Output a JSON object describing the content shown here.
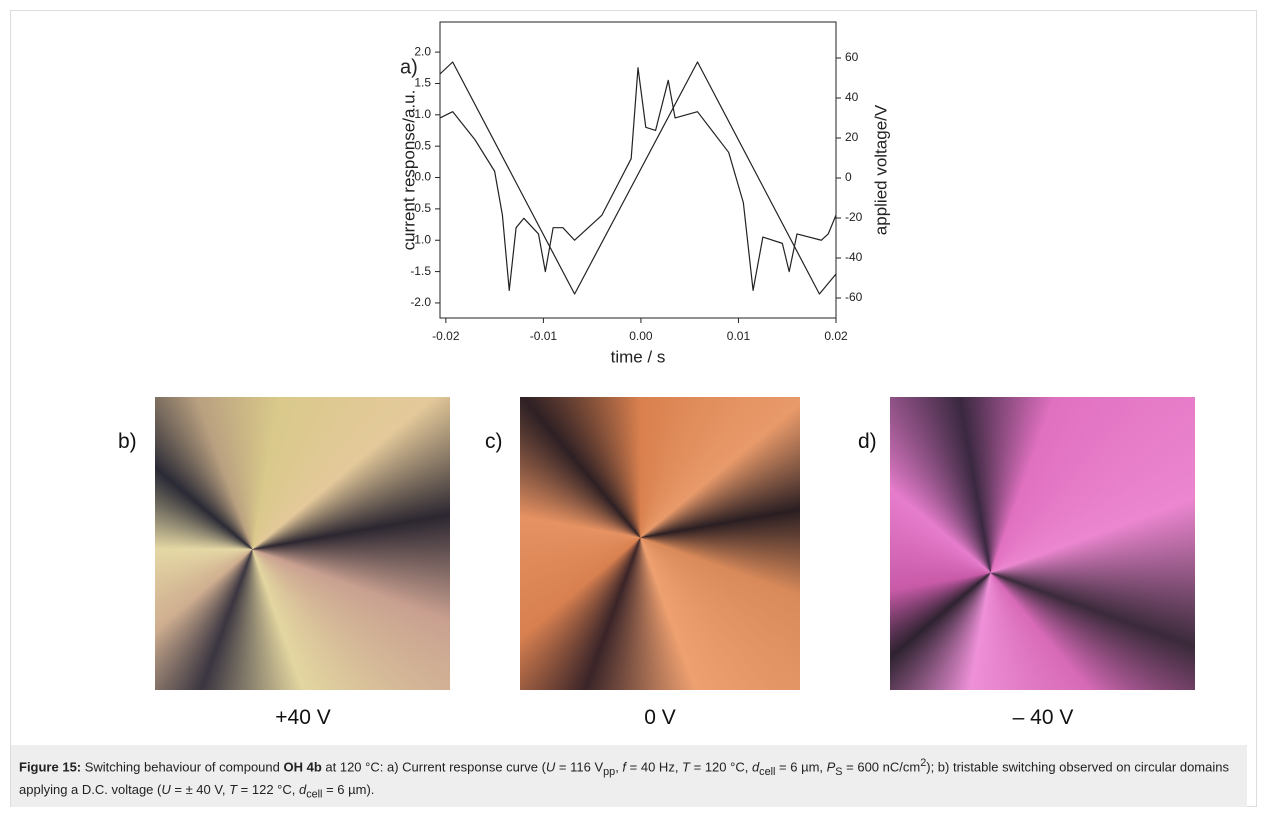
{
  "chart_data": {
    "type": "line",
    "panel_label": "a)",
    "xlabel": "time / s",
    "ylabel": "current response/a.u.",
    "y2label": "applied voltage/V",
    "xlim": [
      -0.0206,
      0.02
    ],
    "xticks": [
      -0.02,
      -0.01,
      {
        "value": 0,
        "label": "0.00"
      },
      0.01,
      0.02
    ],
    "ylim": [
      -2.24,
      2.48
    ],
    "yticks": [
      {
        "value": -2,
        "label": "-2.0"
      },
      -1.5,
      {
        "value": -1,
        "label": "-1.0"
      },
      -0.5,
      {
        "value": 0,
        "label": "0.0"
      },
      0.5,
      {
        "value": 1,
        "label": "1.0"
      },
      1.5,
      {
        "value": 2,
        "label": "2.0"
      }
    ],
    "y2lim": [
      -70,
      78
    ],
    "y2ticks": [
      -60,
      -40,
      -20,
      0,
      20,
      40,
      60
    ],
    "series": [
      {
        "color": "#222222",
        "axis": "y",
        "x": [
          -0.0206,
          -0.0193,
          -0.017,
          -0.015,
          -0.0142,
          -0.0135,
          -0.0128,
          -0.012,
          -0.0105,
          -0.0098,
          -0.009,
          -0.008,
          -0.0068,
          -0.004,
          -0.002,
          -0.001,
          -0.0003,
          0.0005,
          0.0015,
          0.0028,
          0.0035,
          0.0058,
          0.009,
          0.0105,
          0.0115,
          0.0125,
          0.0145,
          0.0152,
          0.016,
          0.0185,
          0.0192,
          0.02
        ],
        "values": [
          0.95,
          1.05,
          0.6,
          0.1,
          -0.6,
          -1.8,
          -0.8,
          -0.65,
          -0.9,
          -1.5,
          -0.8,
          -0.8,
          -1.0,
          -0.6,
          0.0,
          0.3,
          1.75,
          0.8,
          0.75,
          1.55,
          0.95,
          1.05,
          0.4,
          -0.4,
          -1.8,
          -0.95,
          -1.05,
          -1.5,
          -0.9,
          -1.0,
          -0.9,
          -0.6
        ]
      },
      {
        "color": "#222222",
        "axis": "y2",
        "x": [
          -0.0206,
          -0.0193,
          -0.0068,
          0.0058,
          0.0183,
          0.02
        ],
        "values": [
          52,
          58,
          -58,
          58,
          -58,
          -48
        ]
      }
    ]
  },
  "panels": [
    {
      "label": "b)",
      "caption": "+40 V"
    },
    {
      "label": "c)",
      "caption": "0 V"
    },
    {
      "label": "d)",
      "caption": "– 40 V"
    }
  ],
  "caption": [
    "Figure 15:",
    " Switching behaviour of compound ",
    "OH 4b",
    " at 120 °C: a) Current response curve (",
    "U",
    " = 116 V",
    "pp",
    ", ",
    "f",
    " = 40 Hz, ",
    "T",
    " = 120 °C, ",
    "d",
    "cell",
    " = 6 µm, ",
    "P",
    "S",
    " = 600 nC/cm",
    "2",
    "); b) tristable switching observed on circular domains applying a D.C. voltage (",
    "U",
    " = ± 40 V, ",
    "T",
    " = 122 °C, ",
    "d",
    "cell",
    " = 6 µm)."
  ]
}
